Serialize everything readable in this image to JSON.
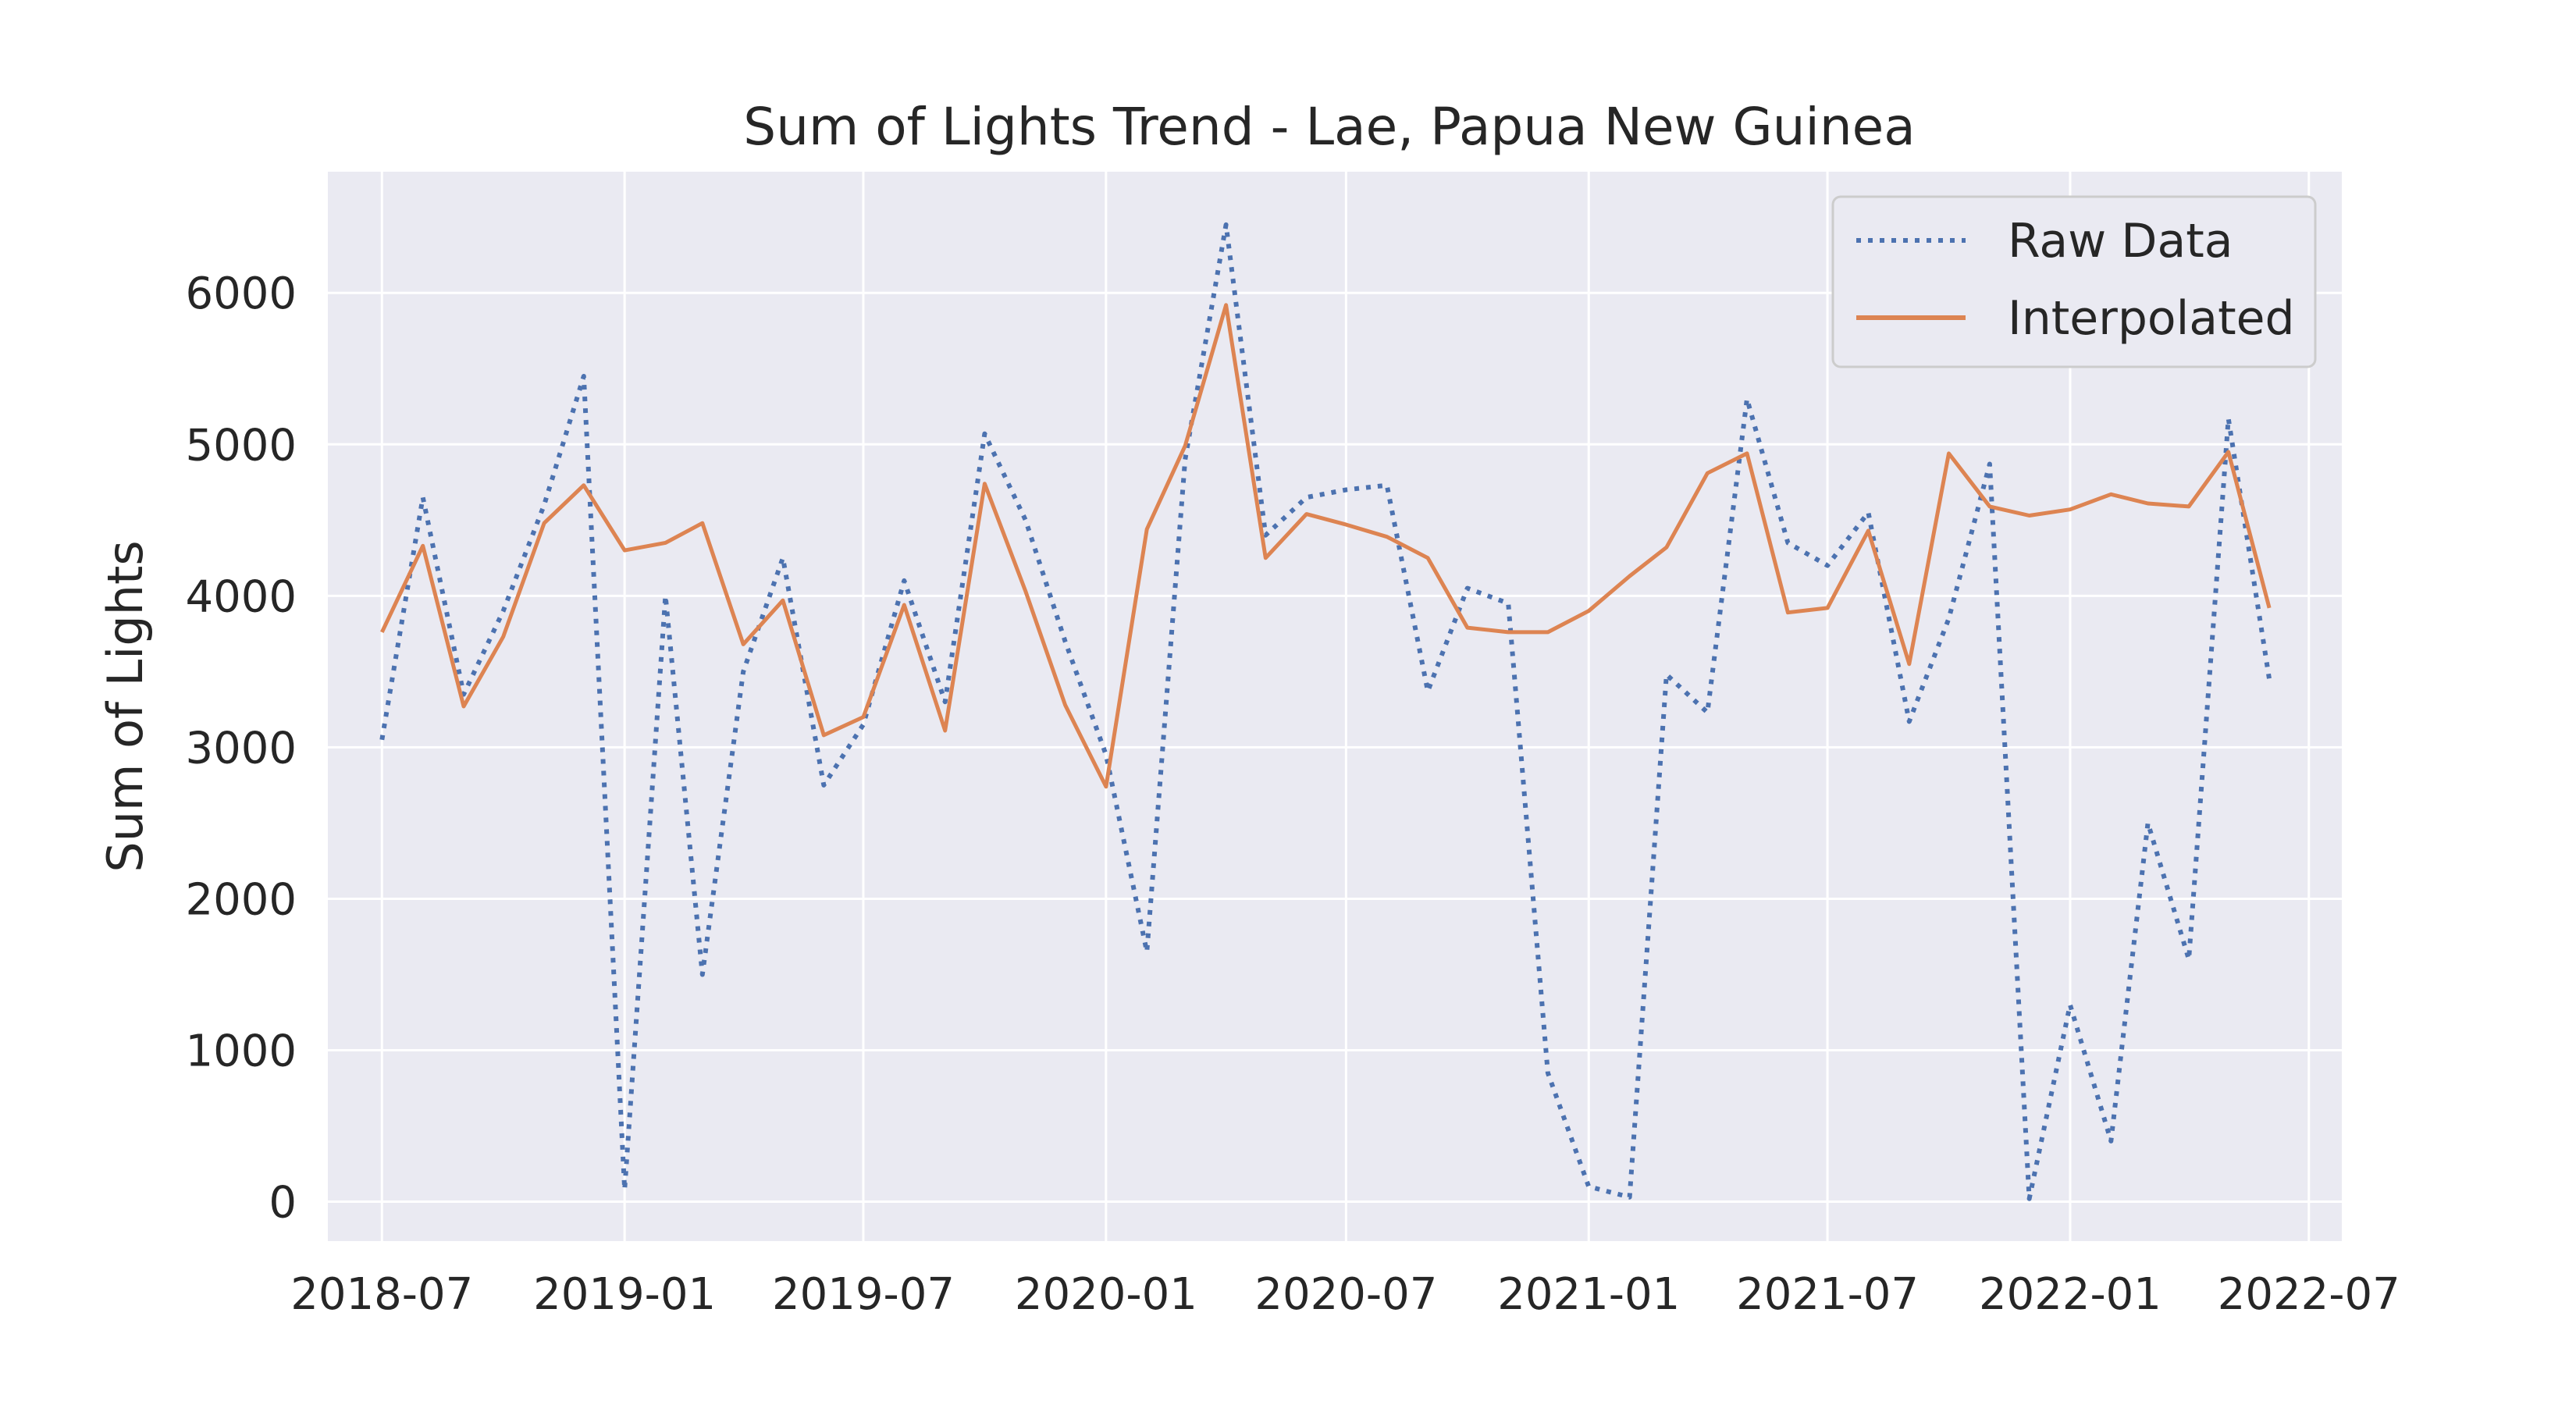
{
  "chart_data": {
    "type": "line",
    "title": "Sum of Lights Trend - Lae, Papua New Guinea",
    "xlabel": "",
    "ylabel": "Sum of Lights",
    "x": [
      "2018-07",
      "2018-08",
      "2018-09",
      "2018-10",
      "2018-11",
      "2018-12",
      "2019-01",
      "2019-02",
      "2019-03",
      "2019-04",
      "2019-05",
      "2019-06",
      "2019-07",
      "2019-08",
      "2019-09",
      "2019-10",
      "2019-11",
      "2019-12",
      "2020-01",
      "2020-02",
      "2020-03",
      "2020-04",
      "2020-05",
      "2020-06",
      "2020-07",
      "2020-08",
      "2020-09",
      "2020-10",
      "2020-11",
      "2020-12",
      "2021-01",
      "2021-02",
      "2021-03",
      "2021-04",
      "2021-05",
      "2021-06",
      "2021-07",
      "2021-08",
      "2021-09",
      "2021-10",
      "2021-11",
      "2021-12",
      "2022-01",
      "2022-02",
      "2022-03",
      "2022-04",
      "2022-05",
      "2022-06"
    ],
    "series": [
      {
        "name": "Raw Data",
        "style": "dotted",
        "color": "#4c72b0",
        "values": [
          3050,
          4650,
          3350,
          3900,
          4600,
          5450,
          80,
          4000,
          1500,
          3500,
          4250,
          2750,
          3150,
          4100,
          3300,
          5070,
          4500,
          3700,
          2950,
          1650,
          4900,
          6450,
          4400,
          4650,
          4700,
          4730,
          3370,
          4050,
          3950,
          850,
          100,
          30,
          3480,
          3230,
          5300,
          4350,
          4200,
          4550,
          3170,
          3850,
          4870,
          20,
          1300,
          400,
          2500,
          1600,
          5170,
          3450
        ]
      },
      {
        "name": "Interpolated",
        "style": "solid",
        "color": "#dd8452",
        "values": [
          3760,
          4330,
          3270,
          3730,
          4480,
          4730,
          4300,
          4350,
          4480,
          3680,
          3970,
          3080,
          3200,
          3940,
          3110,
          4740,
          4030,
          3280,
          2740,
          4440,
          4990,
          5920,
          4250,
          4540,
          4470,
          4390,
          4250,
          3790,
          3760,
          3760,
          3900,
          4130,
          4320,
          4810,
          4940,
          3890,
          3920,
          4430,
          3550,
          4940,
          4590,
          4530,
          4570,
          4670,
          4610,
          4590,
          4950,
          3920
        ]
      }
    ],
    "xticks": [
      "2018-07",
      "2019-01",
      "2019-07",
      "2020-01",
      "2020-07",
      "2021-01",
      "2021-07",
      "2022-01",
      "2022-07"
    ],
    "yticks": [
      0,
      1000,
      2000,
      3000,
      4000,
      5000,
      6000
    ],
    "ylim": [
      -260,
      6800
    ],
    "xlim": [
      "2018-05-21",
      "2022-07-26"
    ],
    "grid": true,
    "legend": "top-right",
    "colors": {
      "background": "#eaeaf2",
      "grid": "#ffffff"
    }
  }
}
